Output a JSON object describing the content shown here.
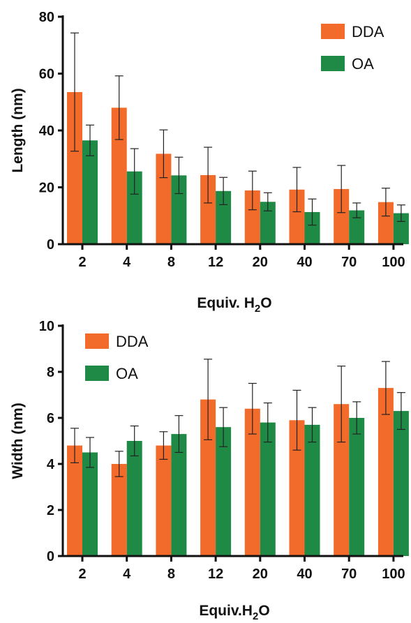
{
  "chart_data": [
    {
      "type": "bar",
      "categories": [
        "2",
        "4",
        "8",
        "12",
        "20",
        "40",
        "70",
        "100"
      ],
      "series": [
        {
          "name": "DDA",
          "color": "#F26B2A",
          "values": [
            53.5,
            48,
            31.8,
            24.3,
            18.9,
            19.2,
            19.4,
            14.8
          ],
          "errors": [
            20.8,
            11.2,
            8.4,
            9.8,
            6.8,
            7.8,
            8.3,
            4.9
          ]
        },
        {
          "name": "OA",
          "color": "#1E8A45",
          "values": [
            36.5,
            25.6,
            24.2,
            18.7,
            14.9,
            11.3,
            11.9,
            10.9
          ],
          "errors": [
            5.4,
            8.0,
            6.4,
            4.8,
            3.2,
            4.6,
            2.6,
            2.9
          ]
        }
      ],
      "ylabel": "Length (nm)",
      "xlabel": "Equiv.  H",
      "xlabel_sub": "2",
      "xlabel_tail": "O",
      "ylim": [
        0,
        80
      ],
      "yticks": [
        0,
        20,
        40,
        60,
        80
      ],
      "legend_position": "top-right"
    },
    {
      "type": "bar",
      "categories": [
        "2",
        "4",
        "8",
        "12",
        "20",
        "40",
        "70",
        "100"
      ],
      "series": [
        {
          "name": "DDA",
          "color": "#F26B2A",
          "values": [
            4.8,
            4.0,
            4.8,
            6.8,
            6.4,
            5.9,
            6.6,
            7.3
          ],
          "errors": [
            0.75,
            0.55,
            0.6,
            1.75,
            1.1,
            1.3,
            1.65,
            1.15
          ]
        },
        {
          "name": "OA",
          "color": "#1E8A45",
          "values": [
            4.5,
            5.0,
            5.3,
            5.6,
            5.8,
            5.7,
            6.0,
            6.3
          ],
          "errors": [
            0.65,
            0.65,
            0.8,
            0.85,
            0.85,
            0.75,
            0.7,
            0.8
          ]
        }
      ],
      "ylabel": "Width (nm)",
      "xlabel": "Equiv.H",
      "xlabel_sub": "2",
      "xlabel_tail": "O",
      "ylim": [
        0,
        10
      ],
      "yticks": [
        0,
        2,
        4,
        6,
        8,
        10
      ],
      "legend_position": "top-left"
    }
  ]
}
